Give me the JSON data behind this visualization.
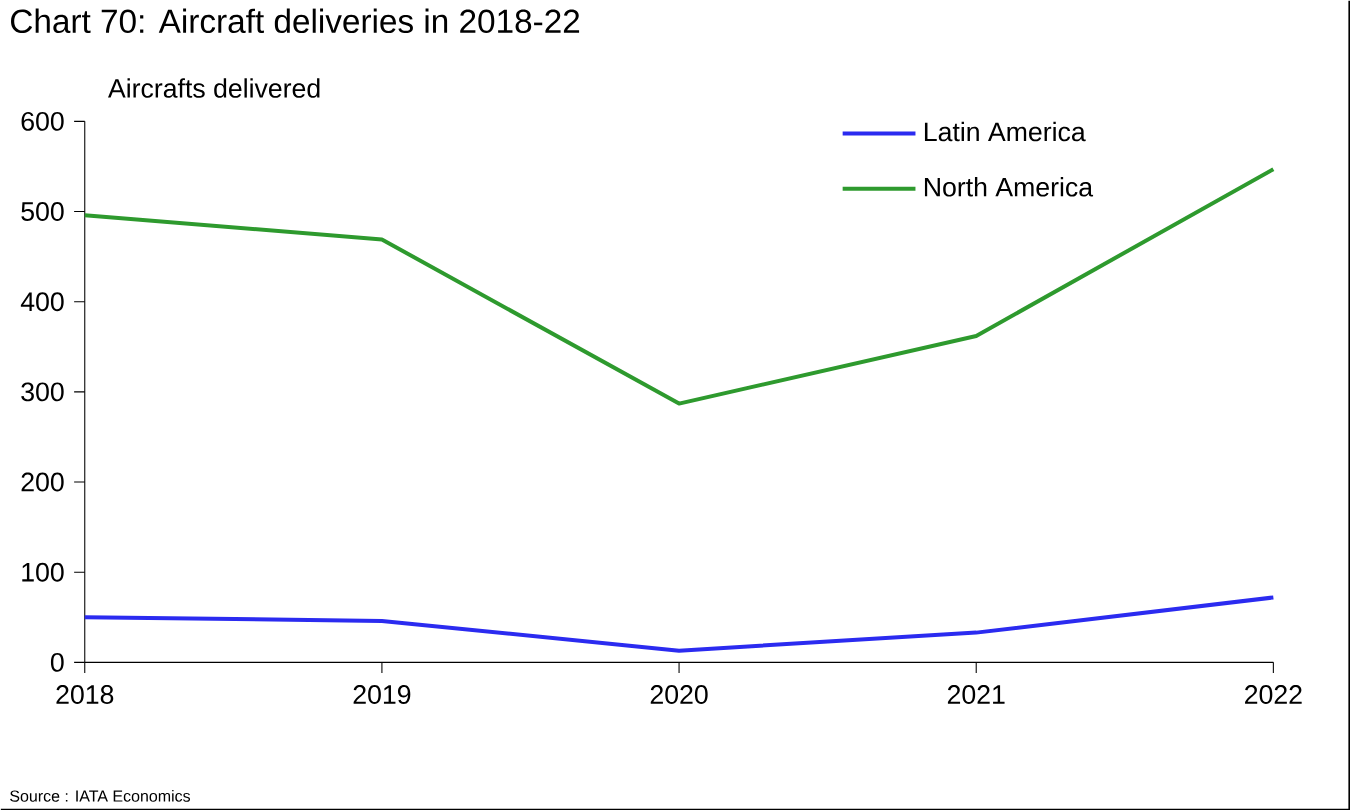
{
  "chart_data": {
    "type": "line",
    "title": "Chart 70: Aircraft deliveries in 2018-22",
    "ylabel": "Aircrafts delivered",
    "x": [
      2018,
      2019,
      2020,
      2021,
      2022
    ],
    "series": [
      {
        "name": "Latin America",
        "color": "#2b2bf0",
        "values": [
          50,
          46,
          13,
          33,
          72
        ]
      },
      {
        "name": "North America",
        "color": "#2e9a2e",
        "values": [
          496,
          469,
          287,
          362,
          547
        ]
      }
    ],
    "xlim": [
      2018,
      2022
    ],
    "xticks": [
      2018,
      2019,
      2020,
      2021,
      2022
    ],
    "ylim": [
      0,
      600
    ],
    "yticks": [
      0,
      100,
      200,
      300,
      400,
      500,
      600
    ],
    "grid": false,
    "legend": "top right",
    "annotations": [
      "Source : IATA Economics"
    ]
  }
}
